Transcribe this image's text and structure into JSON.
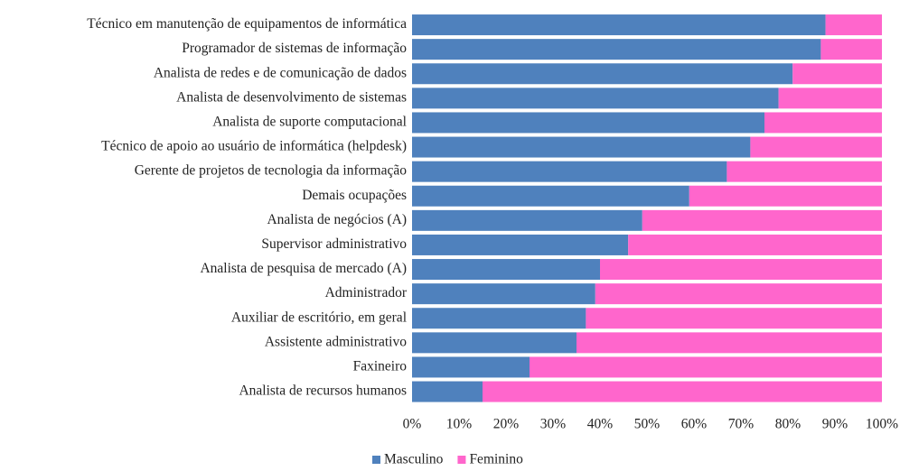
{
  "chart_data": {
    "type": "stacked_barh",
    "categories": [
      "Técnico em manutenção de equipamentos de informática",
      "Programador de sistemas de informação",
      "Analista de redes e de comunicação de dados",
      "Analista de desenvolvimento de sistemas",
      "Analista de suporte computacional",
      "Técnico de apoio ao usuário de informática (helpdesk)",
      "Gerente de projetos de tecnologia da informação",
      "Demais ocupações",
      "Analista de negócios (A)",
      "Supervisor administrativo",
      "Analista de pesquisa de mercado (A)",
      "Administrador",
      "Auxiliar de escritório, em geral",
      "Assistente administrativo",
      "Faxineiro",
      "Analista de recursos humanos"
    ],
    "series": [
      {
        "name": "Masculino",
        "color": "#4f81bd",
        "values": [
          88,
          87,
          81,
          78,
          75,
          72,
          67,
          59,
          49,
          46,
          40,
          39,
          37,
          35,
          25,
          15
        ]
      },
      {
        "name": "Feminino",
        "color": "#ff66cc",
        "values": [
          12,
          13,
          19,
          22,
          25,
          28,
          33,
          41,
          51,
          54,
          60,
          61,
          63,
          65,
          75,
          85
        ]
      }
    ],
    "xlim": [
      0,
      100
    ],
    "xticks": [
      {
        "value": 0,
        "label": "0%"
      },
      {
        "value": 10,
        "label": "10%"
      },
      {
        "value": 20,
        "label": "20%"
      },
      {
        "value": 30,
        "label": "30%"
      },
      {
        "value": 40,
        "label": "40%"
      },
      {
        "value": 50,
        "label": "50%"
      },
      {
        "value": 60,
        "label": "60%"
      },
      {
        "value": 70,
        "label": "70%"
      },
      {
        "value": 80,
        "label": "80%"
      },
      {
        "value": 90,
        "label": "90%"
      },
      {
        "value": 100,
        "label": "100%"
      }
    ],
    "legend": "bottom"
  }
}
